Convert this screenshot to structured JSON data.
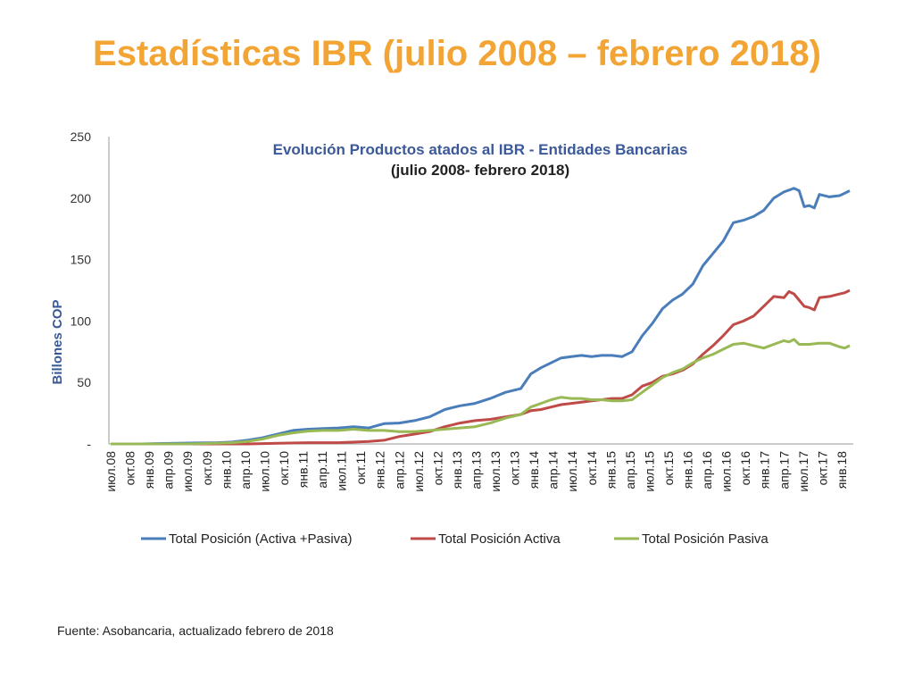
{
  "slide": {
    "title": "Estadísticas IBR (julio 2008 – febrero 2018)",
    "source": "Fuente: Asobancaria, actualizado febrero de 2018"
  },
  "chart_data": {
    "type": "line",
    "title": "Evolución Productos atados al IBR - Entidades Bancarias",
    "subtitle": "(julio 2008- febrero 2018)",
    "ylabel": "Billones COP",
    "xlabel": "",
    "ylim": [
      0,
      250
    ],
    "yticks": [
      0,
      50,
      100,
      150,
      200,
      250
    ],
    "ytick_labels": [
      "-",
      "50",
      "100",
      "150",
      "200",
      "250"
    ],
    "x_tick_labels": [
      "июл.08",
      "окт.08",
      "янв.09",
      "апр.09",
      "июл.09",
      "окт.09",
      "янв.10",
      "апр.10",
      "июл.10",
      "окт.10",
      "янв.11",
      "апр.11",
      "июл.11",
      "окт.11",
      "янв.12",
      "апр.12",
      "июл.12",
      "окт.12",
      "янв.13",
      "апр.13",
      "июл.13",
      "окт.13",
      "янв.14",
      "апр.14",
      "июл.14",
      "окт.14",
      "янв.15",
      "апр.15",
      "июл.15",
      "окт.15",
      "янв.16",
      "апр.16",
      "июл.16",
      "окт.16",
      "янв.17",
      "апр.17",
      "июл.17",
      "окт.17",
      "янв.18"
    ],
    "n_points": 116,
    "legend_position": "bottom",
    "grid": false,
    "series": [
      {
        "name": "Total Posición (Activa +Pasiva)",
        "color": "#4A7EBB",
        "points": [
          [
            0,
            0
          ],
          [
            6,
            0
          ],
          [
            9,
            0.3
          ],
          [
            13,
            0.5
          ],
          [
            17,
            0.8
          ],
          [
            21,
            1
          ],
          [
            24,
            1.5
          ],
          [
            27,
            3
          ],
          [
            30,
            5
          ],
          [
            33,
            8
          ],
          [
            36,
            11
          ],
          [
            39,
            12
          ],
          [
            42,
            12.5
          ],
          [
            45,
            13
          ],
          [
            48,
            14
          ],
          [
            51,
            13
          ],
          [
            54,
            16.5
          ],
          [
            57,
            17
          ],
          [
            60,
            19
          ],
          [
            63,
            22
          ],
          [
            66,
            28
          ],
          [
            69,
            31
          ],
          [
            72,
            33
          ],
          [
            75,
            37
          ],
          [
            78,
            42
          ],
          [
            81,
            45
          ],
          [
            83,
            57
          ],
          [
            85,
            62
          ],
          [
            87,
            66
          ],
          [
            89,
            70
          ],
          [
            91,
            71
          ],
          [
            93,
            72
          ],
          [
            95,
            71
          ],
          [
            97,
            72
          ],
          [
            99,
            72
          ],
          [
            101,
            71
          ],
          [
            103,
            75
          ],
          [
            105,
            88
          ],
          [
            107,
            98
          ],
          [
            109,
            110
          ],
          [
            111,
            117
          ],
          [
            113,
            122
          ],
          [
            115,
            130
          ],
          [
            117,
            145
          ],
          [
            119,
            155
          ],
          [
            121,
            165
          ],
          [
            123,
            180
          ],
          [
            125,
            182
          ],
          [
            127,
            185
          ],
          [
            129,
            190
          ],
          [
            131,
            200
          ],
          [
            133,
            205
          ],
          [
            135,
            208
          ],
          [
            136,
            206
          ],
          [
            137,
            193
          ],
          [
            138,
            194
          ],
          [
            139,
            192
          ],
          [
            140,
            203
          ],
          [
            142,
            201
          ],
          [
            144,
            202
          ],
          [
            145,
            204
          ],
          [
            146,
            206
          ]
        ]
      },
      {
        "name": "Total Posición Activa",
        "color": "#BE4B48",
        "points": [
          [
            0,
            0
          ],
          [
            27,
            0
          ],
          [
            33,
            0.5
          ],
          [
            39,
            1
          ],
          [
            45,
            1
          ],
          [
            51,
            2
          ],
          [
            54,
            3
          ],
          [
            57,
            6
          ],
          [
            60,
            8
          ],
          [
            63,
            10
          ],
          [
            66,
            14
          ],
          [
            69,
            17
          ],
          [
            72,
            19
          ],
          [
            75,
            20
          ],
          [
            78,
            22
          ],
          [
            81,
            24
          ],
          [
            83,
            27
          ],
          [
            85,
            28
          ],
          [
            87,
            30
          ],
          [
            89,
            32
          ],
          [
            91,
            33
          ],
          [
            93,
            34
          ],
          [
            95,
            35
          ],
          [
            97,
            36
          ],
          [
            99,
            37
          ],
          [
            101,
            37
          ],
          [
            103,
            40
          ],
          [
            105,
            47
          ],
          [
            107,
            50
          ],
          [
            109,
            55
          ],
          [
            111,
            57
          ],
          [
            113,
            60
          ],
          [
            115,
            65
          ],
          [
            117,
            73
          ],
          [
            119,
            80
          ],
          [
            121,
            88
          ],
          [
            123,
            97
          ],
          [
            125,
            100
          ],
          [
            127,
            104
          ],
          [
            129,
            112
          ],
          [
            131,
            120
          ],
          [
            133,
            119
          ],
          [
            134,
            124
          ],
          [
            135,
            122
          ],
          [
            136,
            117
          ],
          [
            137,
            112
          ],
          [
            138,
            111
          ],
          [
            139,
            109
          ],
          [
            140,
            119
          ],
          [
            142,
            120
          ],
          [
            144,
            122
          ],
          [
            145,
            123
          ],
          [
            146,
            125
          ]
        ]
      },
      {
        "name": "Total Posición Pasiva",
        "color": "#98B954",
        "points": [
          [
            0,
            0
          ],
          [
            15,
            0
          ],
          [
            21,
            0.5
          ],
          [
            24,
            1
          ],
          [
            27,
            2
          ],
          [
            30,
            4
          ],
          [
            33,
            7
          ],
          [
            36,
            9
          ],
          [
            39,
            10.5
          ],
          [
            42,
            11
          ],
          [
            45,
            11
          ],
          [
            48,
            12
          ],
          [
            51,
            11
          ],
          [
            54,
            11
          ],
          [
            57,
            10
          ],
          [
            60,
            10
          ],
          [
            63,
            11
          ],
          [
            66,
            12
          ],
          [
            69,
            13
          ],
          [
            72,
            14
          ],
          [
            75,
            17
          ],
          [
            78,
            21
          ],
          [
            81,
            24
          ],
          [
            83,
            30
          ],
          [
            85,
            33
          ],
          [
            87,
            36
          ],
          [
            89,
            38
          ],
          [
            91,
            37
          ],
          [
            93,
            37
          ],
          [
            95,
            36
          ],
          [
            97,
            36
          ],
          [
            99,
            35
          ],
          [
            101,
            35
          ],
          [
            103,
            36
          ],
          [
            105,
            42
          ],
          [
            107,
            48
          ],
          [
            109,
            54
          ],
          [
            111,
            58
          ],
          [
            113,
            61
          ],
          [
            115,
            66
          ],
          [
            117,
            70
          ],
          [
            119,
            73
          ],
          [
            121,
            77
          ],
          [
            123,
            81
          ],
          [
            125,
            82
          ],
          [
            127,
            80
          ],
          [
            129,
            78
          ],
          [
            131,
            81
          ],
          [
            133,
            84
          ],
          [
            134,
            83
          ],
          [
            135,
            85
          ],
          [
            136,
            81
          ],
          [
            137,
            81
          ],
          [
            138,
            81
          ],
          [
            140,
            82
          ],
          [
            142,
            82
          ],
          [
            144,
            79
          ],
          [
            145,
            78
          ],
          [
            146,
            80
          ]
        ]
      }
    ]
  }
}
